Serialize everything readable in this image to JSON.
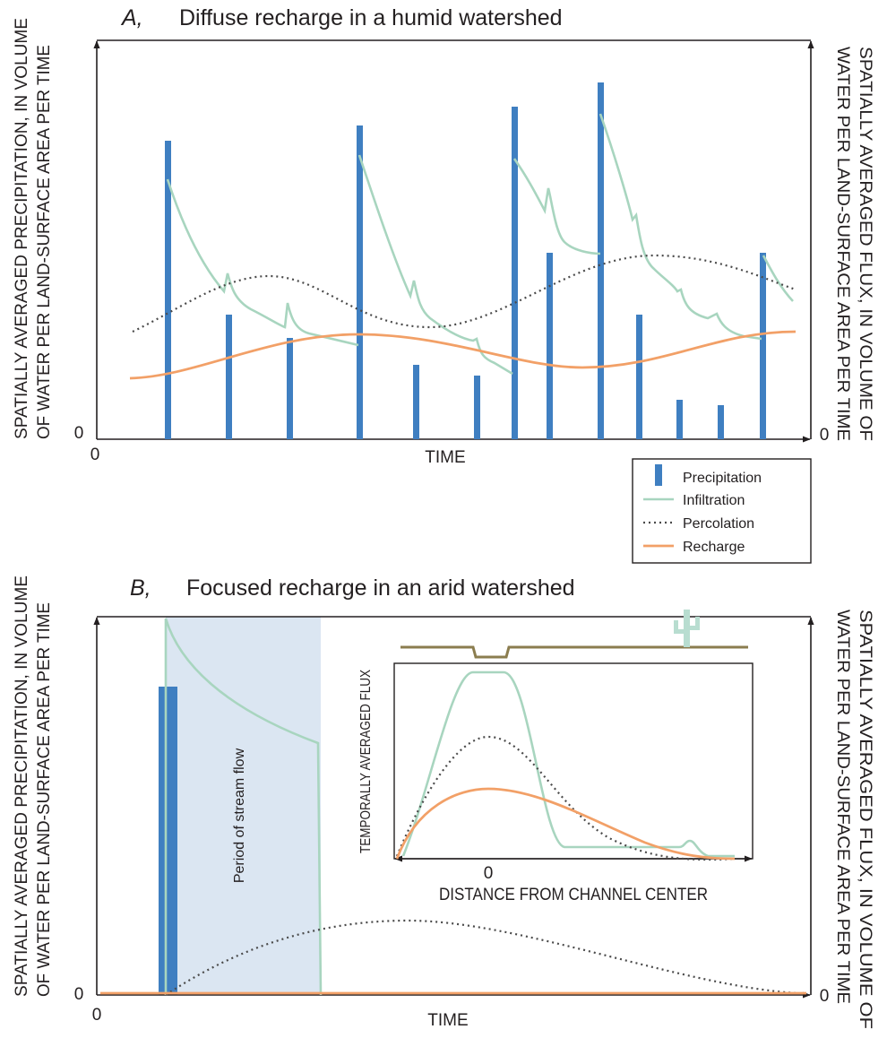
{
  "panel_a": {
    "letter": "A,",
    "title": "Diffuse recharge in a humid watershed",
    "y_label_left": [
      "SPATIALLY AVERAGED PRECIPITATION, IN VOLUME",
      "OF WATER PER LAND-SURFACE AREA PER TIME"
    ],
    "y_label_right": [
      "SPATIALLY AVERAGED FLUX, IN VOLUME OF",
      "WATER PER LAND-SURFACE AREA PER TIME"
    ],
    "y_origin_left": "0",
    "x_origin": "0",
    "y_origin_right": "0",
    "x_label": "TIME"
  },
  "legend": {
    "items": [
      "Precipitation",
      "Infiltration",
      "Percolation",
      "Recharge"
    ]
  },
  "panel_b": {
    "letter": "B,",
    "title": "Focused recharge in an arid watershed",
    "y_label_left": [
      "SPATIALLY AVERAGED PRECIPITATION, IN VOLUME",
      "OF WATER PER LAND-SURFACE AREA PER TIME"
    ],
    "y_label_right": [
      "SPATIALLY AVERAGED FLUX, IN VOLUME OF",
      "WATER PER LAND-SURFACE AREA PER TIME"
    ],
    "y_origin_left": "0",
    "x_origin": "0",
    "y_origin_right": "0",
    "x_label": "TIME",
    "annotation": "Period of stream flow",
    "inset": {
      "y_label": "TEMPORALLY AVERAGED FLUX",
      "x_origin": "0",
      "x_label": "DISTANCE FROM CHANNEL CENTER"
    }
  }
}
